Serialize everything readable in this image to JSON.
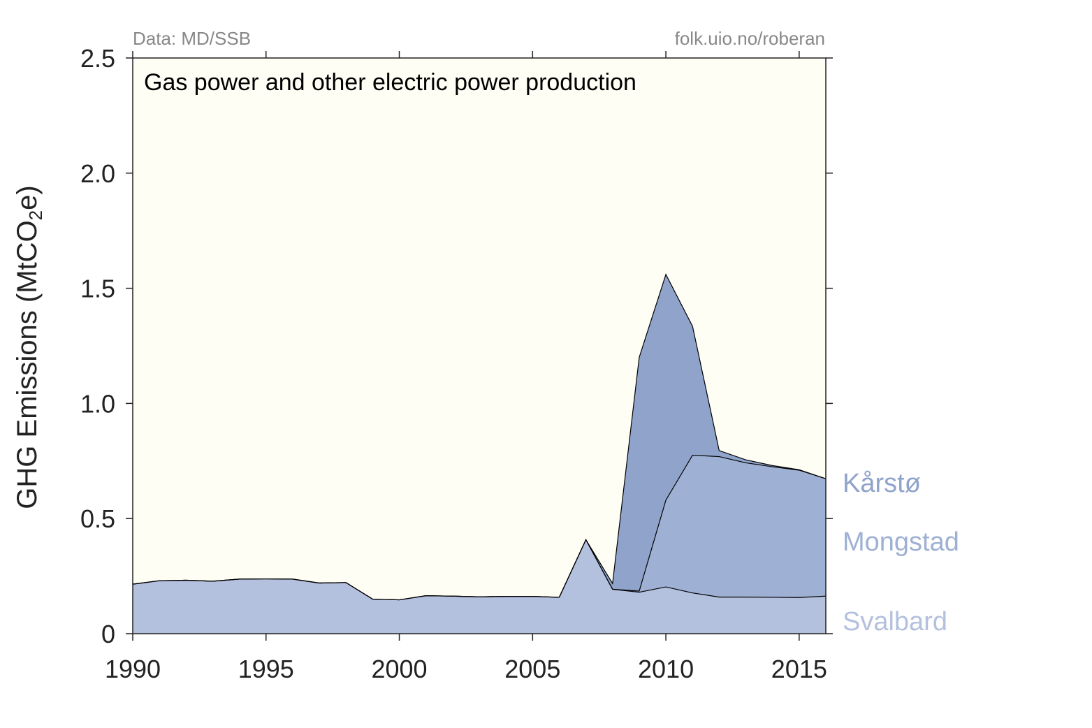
{
  "source_left": "Data: MD/SSB",
  "source_right": "folk.uio.no/roberan",
  "chart_data": {
    "type": "area",
    "stacked": true,
    "title": "Gas power and other electric power production",
    "ylabel": "GHG Emissions (MtCO2e)",
    "ylabel_main": "GHG Emissions (MtCO",
    "ylabel_sub": "2",
    "ylabel_end": "e)",
    "xlim": [
      1990,
      2016
    ],
    "ylim": [
      0,
      2.5
    ],
    "xticks": [
      1990,
      1995,
      2000,
      2005,
      2010,
      2015
    ],
    "xtick_labels": [
      "1990",
      "1995",
      "2000",
      "2005",
      "2010",
      "2015"
    ],
    "yticks": [
      0,
      0.5,
      1.0,
      1.5,
      2.0,
      2.5
    ],
    "ytick_labels": [
      "0",
      "0.5",
      "1.0",
      "1.5",
      "2.0",
      "2.5"
    ],
    "grid": false,
    "legend": "right-side labels",
    "plot_background": "#fffef5",
    "x": [
      1990,
      1991,
      1992,
      1993,
      1994,
      1995,
      1996,
      1997,
      1998,
      1999,
      2000,
      2001,
      2002,
      2003,
      2004,
      2005,
      2006,
      2007,
      2008,
      2009,
      2010,
      2011,
      2012,
      2013,
      2014,
      2015,
      2016
    ],
    "series": [
      {
        "name": "Svalbard",
        "color": "#b3c0de",
        "values": [
          0.215,
          0.23,
          0.232,
          0.228,
          0.237,
          0.238,
          0.237,
          0.22,
          0.222,
          0.15,
          0.147,
          0.165,
          0.163,
          0.16,
          0.162,
          0.162,
          0.158,
          0.408,
          0.193,
          0.18,
          0.203,
          0.177,
          0.159,
          0.159,
          0.158,
          0.157,
          0.163
        ]
      },
      {
        "name": "Mongstad",
        "color": "#9eb0d4",
        "values": [
          0,
          0,
          0,
          0,
          0,
          0,
          0,
          0,
          0,
          0,
          0,
          0,
          0,
          0,
          0,
          0,
          0,
          0,
          0,
          0.005,
          0.377,
          0.598,
          0.61,
          0.583,
          0.567,
          0.553,
          0.51
        ]
      },
      {
        "name": "Kårstø",
        "color": "#8fa3cb",
        "values": [
          0,
          0,
          0,
          0,
          0,
          0,
          0,
          0,
          0,
          0,
          0,
          0,
          0,
          0,
          0,
          0,
          0,
          0,
          0.025,
          1.015,
          0.98,
          0.56,
          0.026,
          0.013,
          0.005,
          0.002,
          0
        ]
      }
    ]
  }
}
